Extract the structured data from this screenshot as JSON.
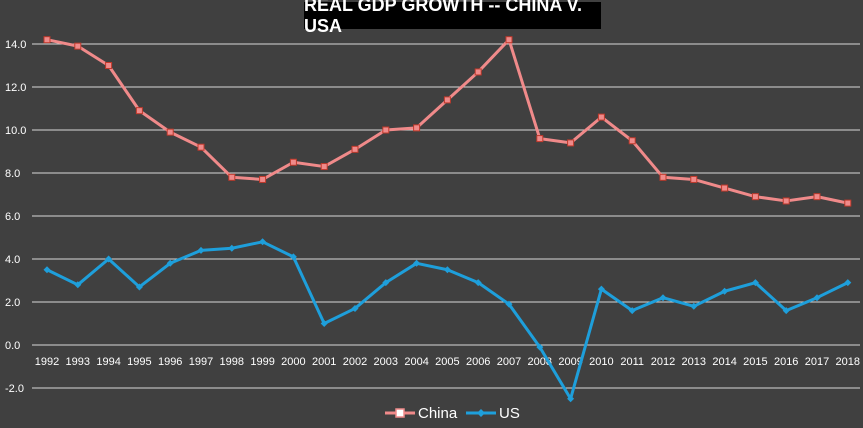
{
  "chart_data": {
    "type": "line",
    "title": "REAL GDP GROWTH -- CHINA V. USA",
    "xlabel": "",
    "ylabel": "",
    "categories": [
      "1992",
      "1993",
      "1994",
      "1995",
      "1996",
      "1997",
      "1998",
      "1999",
      "2000",
      "2001",
      "2002",
      "2003",
      "2004",
      "2005",
      "2006",
      "2007",
      "2008",
      "2009",
      "2010",
      "2011",
      "2012",
      "2013",
      "2014",
      "2015",
      "2016",
      "2017",
      "2018"
    ],
    "series": [
      {
        "name": "China",
        "color": "#f08a8a",
        "marker": "square",
        "values": [
          14.2,
          13.9,
          13.0,
          10.9,
          9.9,
          9.2,
          7.8,
          7.7,
          8.5,
          8.3,
          9.1,
          10.0,
          10.1,
          11.4,
          12.7,
          14.2,
          9.6,
          9.4,
          10.6,
          9.5,
          7.8,
          7.7,
          7.3,
          6.9,
          6.7,
          6.9,
          6.6
        ]
      },
      {
        "name": "US",
        "color": "#1e9fdb",
        "marker": "diamond",
        "values": [
          3.5,
          2.8,
          4.0,
          2.7,
          3.8,
          4.4,
          4.5,
          4.8,
          4.1,
          1.0,
          1.7,
          2.9,
          3.8,
          3.5,
          2.9,
          1.9,
          -0.1,
          -2.5,
          2.6,
          1.6,
          2.2,
          1.8,
          2.5,
          2.9,
          1.6,
          2.2,
          2.9
        ]
      }
    ],
    "yticks": [
      "14.0",
      "12.0",
      "10.0",
      "8.0",
      "6.0",
      "4.0",
      "2.0",
      "0.0",
      "-2.0"
    ],
    "ylim": [
      -2.5,
      15
    ],
    "grid": true,
    "legend_position": "bottom"
  }
}
